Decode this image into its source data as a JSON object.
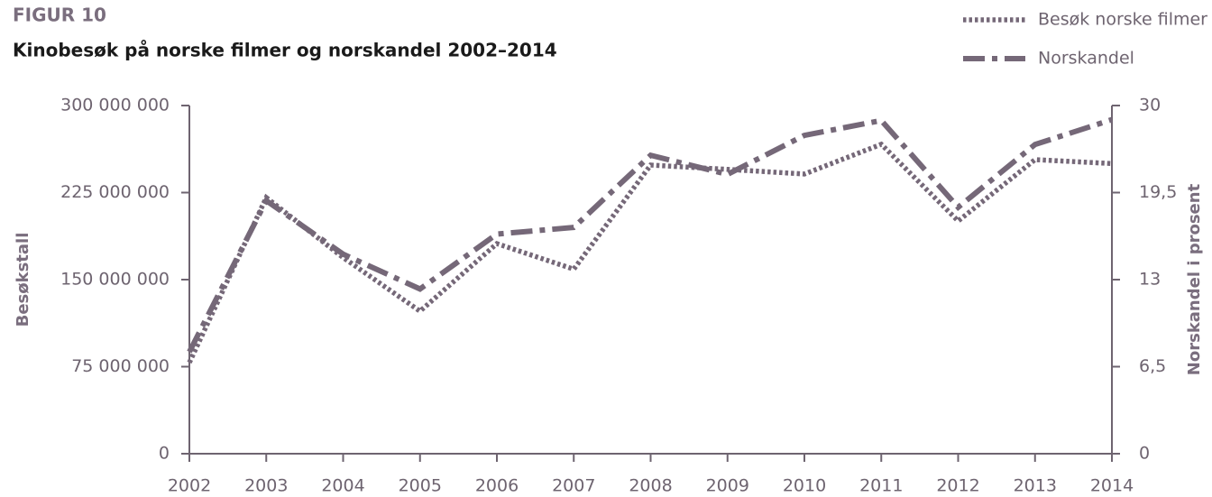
{
  "chart_data": {
    "type": "line",
    "figure_label": "FIGUR 10",
    "title": "Kinobesøk på norske filmer og norskandel 2002–2014",
    "y_label": "Besøkstall",
    "y2_label": "Norskandel i prosent",
    "x": [
      2002,
      2003,
      2004,
      2005,
      2006,
      2007,
      2008,
      2009,
      2010,
      2011,
      2012,
      2013,
      2014
    ],
    "xlim": [
      2002,
      2014
    ],
    "xticks": [
      2002,
      2003,
      2004,
      2005,
      2006,
      2007,
      2008,
      2009,
      2010,
      2011,
      2012,
      2013,
      2014
    ],
    "ylim": [
      0,
      300000000
    ],
    "yticks": [
      0,
      {
        "value": 75000000,
        "label": "75 000 000"
      },
      {
        "value": 150000000,
        "label": "150 000 000"
      },
      {
        "value": 225000000,
        "label": "225 000 000"
      },
      {
        "value": 300000000,
        "label": "300 000 000"
      }
    ],
    "y2lim": [
      0,
      30
    ],
    "y2ticks": [
      0,
      {
        "value": 6.5,
        "label": "6,5"
      },
      13,
      {
        "value": 19.5,
        "label": "19,5"
      },
      30
    ],
    "legend": "top-right",
    "series": [
      {
        "name": "Besøk norske filmer",
        "color": "#756878",
        "style": "dotted",
        "values": [
          78500000,
          220700000,
          169000000,
          122800000,
          181000000,
          159000000,
          248700000,
          245000000,
          241000000,
          266600000,
          200500000,
          253400000,
          250000000
        ]
      },
      {
        "name": "Norskandel",
        "color": "#756878",
        "style": "dashdot",
        "axis": "y2",
        "values": [
          7.6,
          18.9,
          14.9,
          12.3,
          16.4,
          16.9,
          24.0,
          21.7,
          26.4,
          28.2,
          18.4,
          25.3,
          28.3
        ]
      }
    ]
  }
}
